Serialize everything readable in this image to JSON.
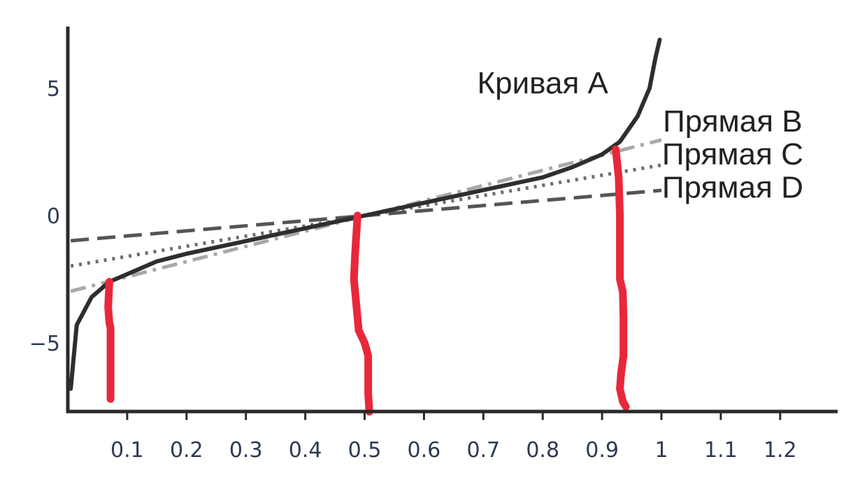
{
  "chart_data": {
    "type": "line",
    "xlim": [
      0,
      1.3
    ],
    "ylim": [
      -7.7,
      7.5
    ],
    "x_ticks": [
      0.1,
      0.2,
      0.3,
      0.4,
      0.5,
      0.6,
      0.7,
      0.8,
      0.9,
      1.0,
      1.1,
      1.2
    ],
    "x_tick_labels": [
      "0.1",
      "0.2",
      "0.3",
      "0.4",
      "0.5",
      "0.6",
      "0.7",
      "0.8",
      "0.9",
      "1",
      "1.1",
      "1.2"
    ],
    "y_ticks": [
      5,
      0,
      -5
    ],
    "y_tick_labels": [
      "5",
      "0",
      "−5"
    ],
    "grid": false,
    "series": [
      {
        "name": "Кривая A",
        "style": "solid",
        "color": "#2e2e2e",
        "x": [
          0.005,
          0.015,
          0.04,
          0.07,
          0.1,
          0.15,
          0.2,
          0.3,
          0.4,
          0.5,
          0.6,
          0.7,
          0.8,
          0.85,
          0.9,
          0.93,
          0.96,
          0.98,
          0.99,
          0.997
        ],
        "y": [
          -6.8,
          -4.3,
          -3.2,
          -2.6,
          -2.3,
          -1.8,
          -1.5,
          -1.0,
          -0.5,
          0.0,
          0.5,
          1.0,
          1.5,
          1.9,
          2.4,
          2.9,
          3.9,
          5.0,
          6.2,
          6.9
        ]
      },
      {
        "name": "Прямая B",
        "style": "dashdot",
        "color": "#a8a8a8",
        "x": [
          0.005,
          1.0
        ],
        "y": [
          -2.97,
          2.97
        ]
      },
      {
        "name": "Прямая C",
        "style": "dotted",
        "color": "#6e6e6e",
        "x": [
          0.005,
          1.0
        ],
        "y": [
          -1.98,
          1.98
        ]
      },
      {
        "name": "Прямая D",
        "style": "dashed",
        "color": "#555555",
        "x": [
          0.005,
          1.0
        ],
        "y": [
          -0.99,
          0.99
        ]
      }
    ],
    "markers": [
      {
        "color": "#e8283a",
        "x": [
          0.07,
          0.068,
          0.07,
          0.072,
          0.072,
          0.072,
          0.072
        ],
        "y": [
          -2.6,
          -3.6,
          -4.2,
          -4.4,
          -5.5,
          -6.5,
          -7.2
        ]
      },
      {
        "color": "#e8283a",
        "x": [
          0.488,
          0.484,
          0.482,
          0.486,
          0.49,
          0.5,
          0.506,
          0.506,
          0.506,
          0.508
        ],
        "y": [
          0.0,
          -1.5,
          -2.5,
          -3.5,
          -4.5,
          -5.0,
          -5.5,
          -6.3,
          -7.0,
          -7.7
        ]
      },
      {
        "color": "#e8283a",
        "x": [
          0.923,
          0.928,
          0.93,
          0.93,
          0.935,
          0.936,
          0.936,
          0.932,
          0.93,
          0.935,
          0.94
        ],
        "y": [
          2.6,
          1.5,
          0.0,
          -2.5,
          -3.0,
          -4.0,
          -5.5,
          -6.2,
          -6.8,
          -7.3,
          -7.5
        ]
      }
    ],
    "annotations": [
      {
        "text": "Кривая A",
        "x": 0.8,
        "y": 4.8
      },
      {
        "text": "Прямая B",
        "x": 1.12,
        "y": 3.3
      },
      {
        "text": "Прямая C",
        "x": 1.12,
        "y": 2.0
      },
      {
        "text": "Прямая D",
        "x": 1.12,
        "y": 0.7
      }
    ]
  }
}
